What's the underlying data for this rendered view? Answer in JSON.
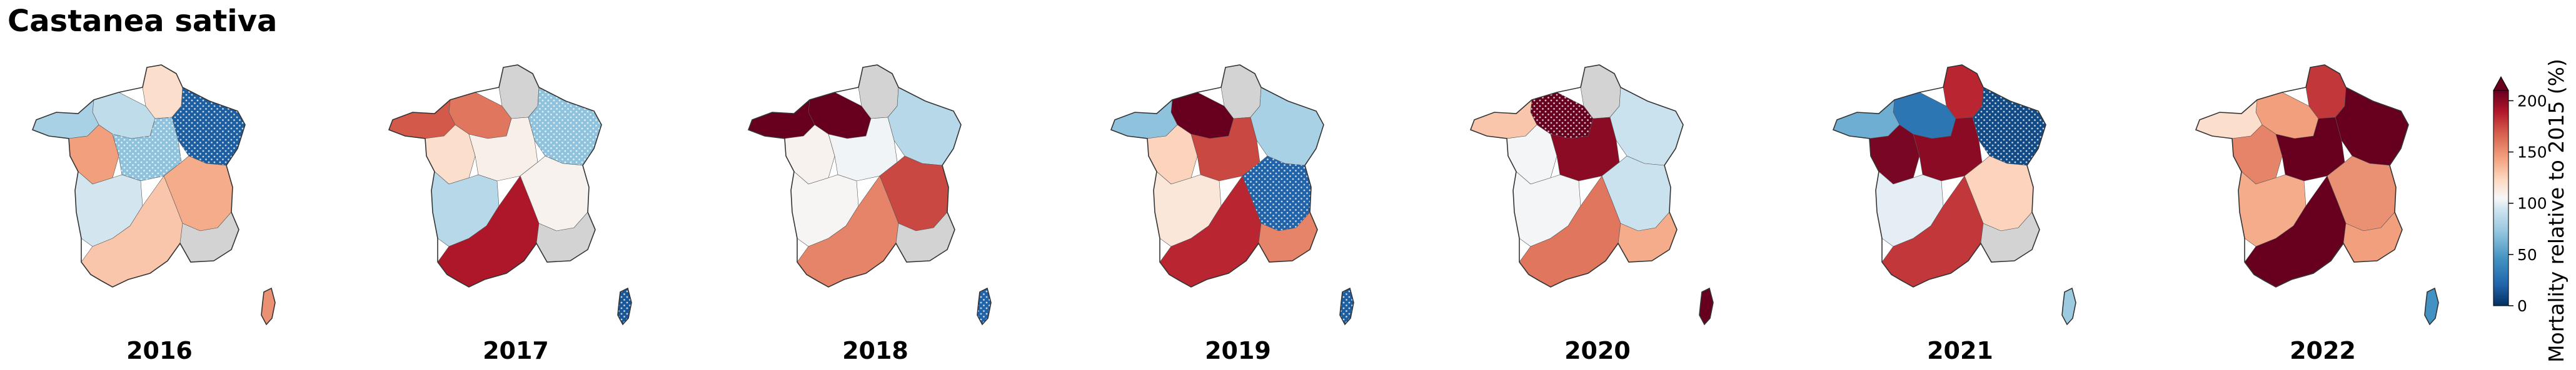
{
  "figure": {
    "title": "Castanea sativa"
  },
  "colors": {
    "no_data": "#d3d3d3",
    "outline": "#333333",
    "colormap": "RdBu_r"
  },
  "chart_data": {
    "type": "choropleth",
    "title": "Castanea sativa",
    "colorbar": {
      "label": "Mortality relative to 2015 (%)",
      "ticks": [
        0,
        50,
        100,
        150,
        200
      ],
      "range": [
        0,
        210
      ],
      "extend": "max"
    },
    "regions": [
      "north-west",
      "north",
      "north-east",
      "brittany",
      "west",
      "centre",
      "east",
      "south-west",
      "south-central",
      "south-east",
      "corsica"
    ],
    "maps": [
      {
        "year": "2016",
        "values": {
          "north-west": 88,
          "north": 120,
          "north-east": 18,
          "brittany": 80,
          "west": 145,
          "centre": 70,
          "east": 140,
          "south-west": 95,
          "south-central": 130,
          "south-east": null,
          "corsica": 150
        },
        "hatched": [
          "north-east",
          "centre"
        ]
      },
      {
        "year": "2017",
        "values": {
          "north-west": 160,
          "north": null,
          "north-east": 70,
          "brittany": 170,
          "west": 120,
          "centre": 110,
          "east": 108,
          "south-west": 85,
          "south-central": 190,
          "south-east": null,
          "corsica": 15
        },
        "hatched": [
          "north-east",
          "corsica"
        ]
      },
      {
        "year": "2018",
        "values": {
          "north-west": 210,
          "north": null,
          "north-east": 85,
          "brittany": 210,
          "west": 108,
          "centre": 103,
          "east": 175,
          "south-west": 106,
          "south-central": 155,
          "south-east": null,
          "corsica": 20
        },
        "hatched": [
          "corsica"
        ]
      },
      {
        "year": "2019",
        "values": {
          "north-west": 210,
          "north": null,
          "north-east": 80,
          "brittany": 70,
          "west": 125,
          "centre": 175,
          "east": 20,
          "south-west": 115,
          "south-central": 185,
          "south-east": 155,
          "corsica": 18
        },
        "hatched": [
          "east",
          "corsica"
        ]
      },
      {
        "year": "2020",
        "values": {
          "north-west": 210,
          "north": null,
          "north-east": 92,
          "brittany": 130,
          "west": 104,
          "centre": 200,
          "east": 92,
          "south-west": 104,
          "south-central": 160,
          "south-east": 140,
          "corsica": 210
        },
        "hatched": [
          "north-west"
        ]
      },
      {
        "year": "2021",
        "values": {
          "north-west": 30,
          "north": 185,
          "north-east": 10,
          "brittany": 60,
          "west": 205,
          "centre": 200,
          "east": 125,
          "south-west": 100,
          "south-central": 180,
          "south-east": null,
          "corsica": 75
        },
        "hatched": [
          "north-east"
        ]
      },
      {
        "year": "2022",
        "values": {
          "north-west": 145,
          "north": 180,
          "north-east": 210,
          "brittany": 120,
          "west": 155,
          "centre": 210,
          "east": 150,
          "south-west": 140,
          "south-central": 210,
          "south-east": 145,
          "corsica": 45
        },
        "hatched": []
      }
    ]
  }
}
